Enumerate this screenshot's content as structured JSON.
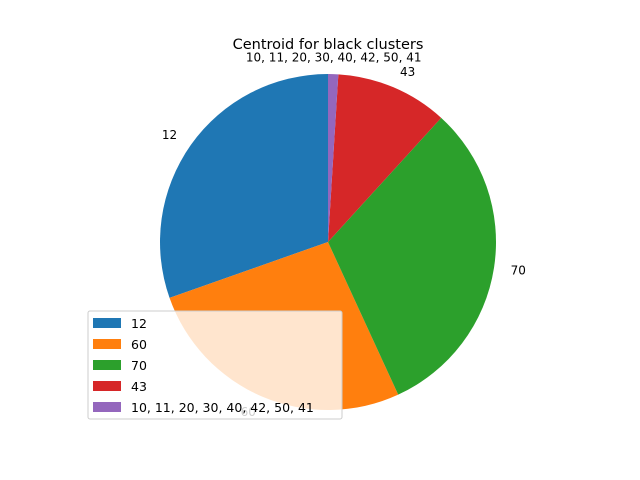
{
  "chart_data": {
    "type": "pie",
    "title": "Centroid for black clusters",
    "labels": [
      "12",
      "60",
      "70",
      "43",
      " 10, 11, 20, 30, 40, 42, 50, 41"
    ],
    "values": [
      31,
      27,
      32,
      11,
      1
    ],
    "colors": [
      "#1f77b4",
      "#ff7f0e",
      "#2ca02c",
      "#d62728",
      "#9467bd"
    ],
    "start_angle": 90,
    "direction": "counterclockwise",
    "legend": {
      "placement": "lower-left",
      "entries": [
        "12",
        "60",
        "70",
        "43",
        " 10, 11, 20, 30, 40, 42, 50, 41"
      ]
    }
  }
}
